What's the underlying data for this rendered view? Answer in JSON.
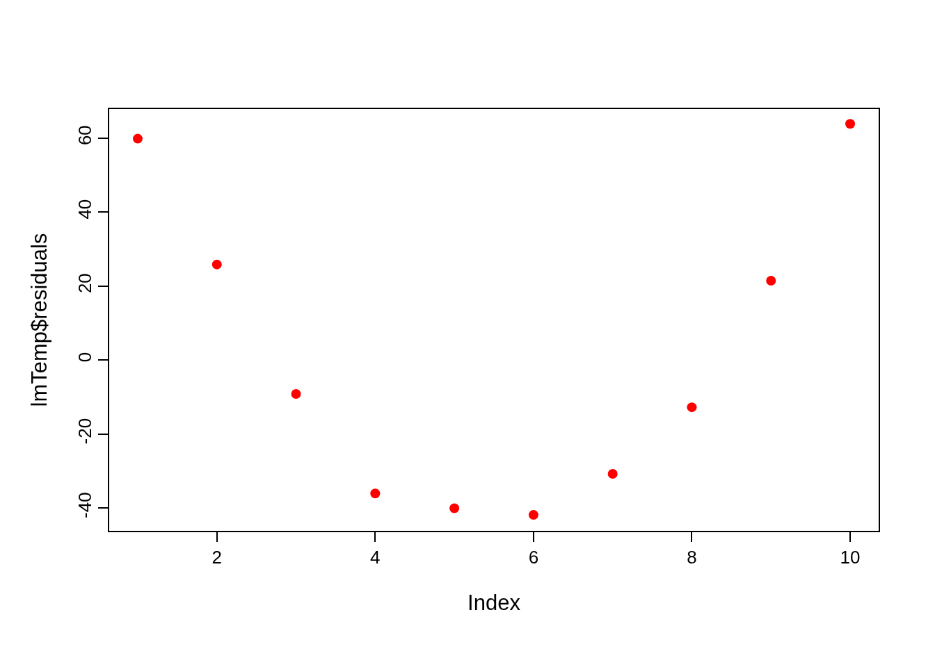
{
  "chart_data": {
    "type": "scatter",
    "xlabel": "Index",
    "ylabel": "lmTemp$residuals",
    "x": [
      1,
      2,
      3,
      4,
      5,
      6,
      7,
      8,
      9,
      10
    ],
    "series": [
      {
        "color": "#ff0000",
        "values": [
          59.8,
          25.8,
          -9.2,
          -36.1,
          -40.1,
          -41.9,
          -30.8,
          -12.8,
          21.4,
          63.8
        ]
      }
    ],
    "xlim": [
      0.64,
      10.36
    ],
    "xticks": [
      2,
      4,
      6,
      8,
      10
    ],
    "ylim": [
      -46.2,
      67.8
    ],
    "yticks": [
      -40,
      -20,
      0,
      20,
      40,
      60
    ],
    "grid": false,
    "marker": "circle"
  }
}
